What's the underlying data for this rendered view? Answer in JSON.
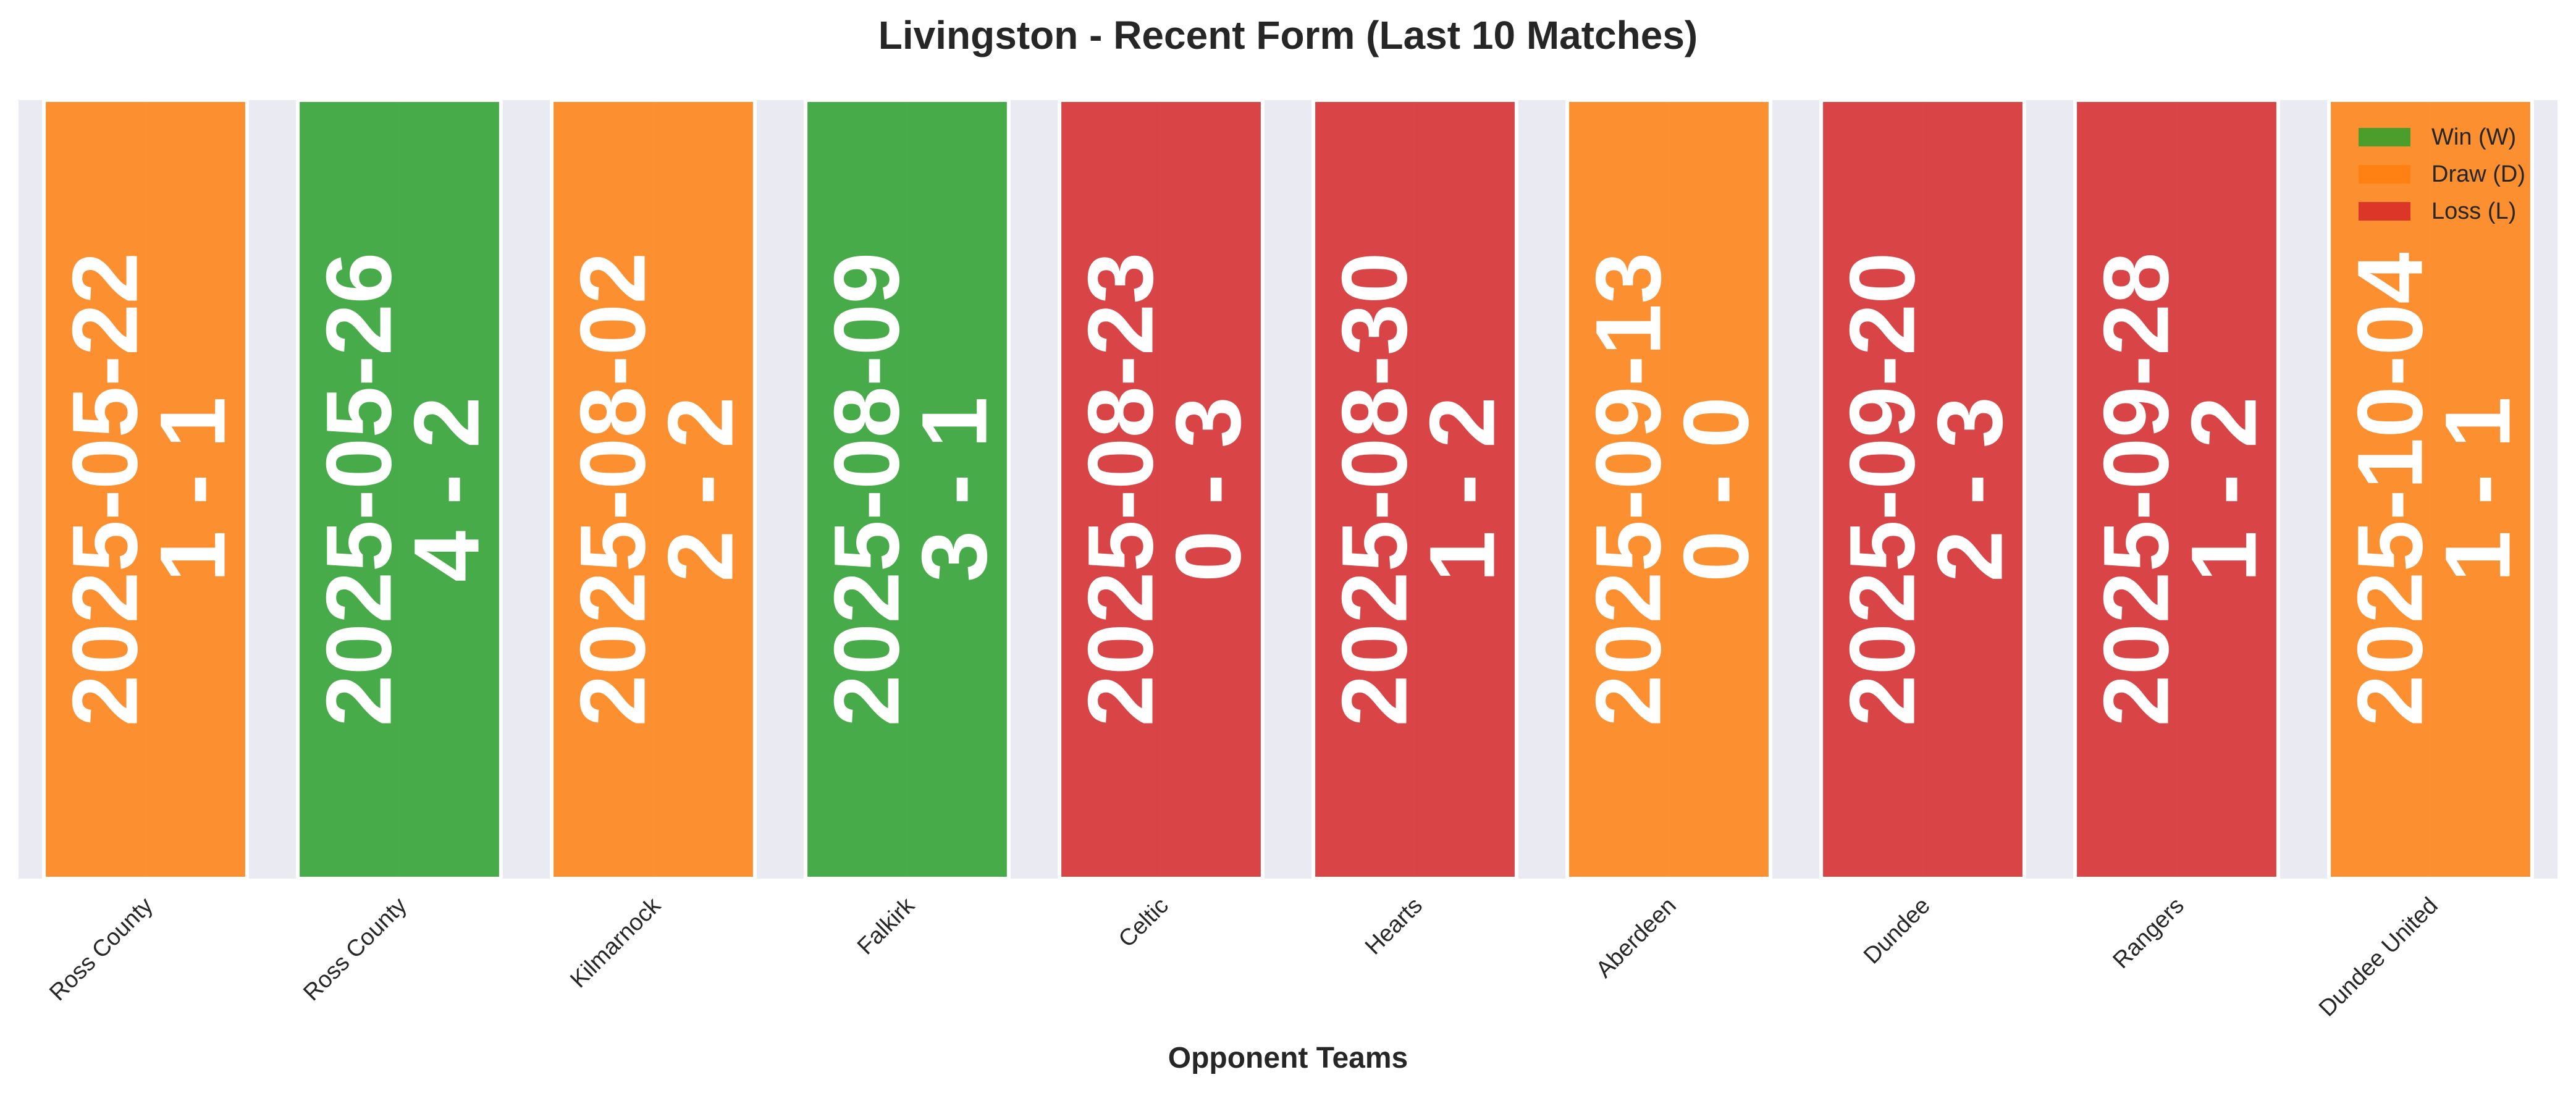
{
  "chart_data": {
    "type": "bar",
    "title": "Livingston - Recent Form (Last 10 Matches)",
    "xlabel": "Opponent Teams",
    "ylabel": "",
    "grid": true,
    "legend_position": "top-right",
    "categories": [
      "Ross County",
      "Ross County",
      "Kilmarnock",
      "Falkirk",
      "Celtic",
      "Hearts",
      "Aberdeen",
      "Dundee",
      "Rangers",
      "Dundee United"
    ],
    "dates": [
      "2025-05-22",
      "2025-05-26",
      "2025-08-02",
      "2025-08-09",
      "2025-08-23",
      "2025-08-30",
      "2025-09-13",
      "2025-09-20",
      "2025-09-28",
      "2025-10-04"
    ],
    "scores": [
      "1 - 1",
      "4 - 2",
      "2 - 2",
      "3 - 1",
      "0 - 3",
      "1 - 2",
      "0 - 0",
      "2 - 3",
      "1 - 2",
      "1 - 1"
    ],
    "results": [
      "D",
      "W",
      "D",
      "W",
      "L",
      "L",
      "D",
      "L",
      "L",
      "D"
    ],
    "values": [
      1,
      1,
      1,
      1,
      1,
      1,
      1,
      1,
      1,
      1
    ],
    "legend": [
      {
        "key": "W",
        "label": "Win (W)",
        "color": "#2ca02c"
      },
      {
        "key": "D",
        "label": "Draw (D)",
        "color": "#ff7f0e"
      },
      {
        "key": "L",
        "label": "Loss (L)",
        "color": "#d62728"
      }
    ],
    "colors": {
      "W": "#2ca02c",
      "D": "#ff7f0e",
      "L": "#d62728",
      "plot_background": "#eaeaf2"
    }
  }
}
